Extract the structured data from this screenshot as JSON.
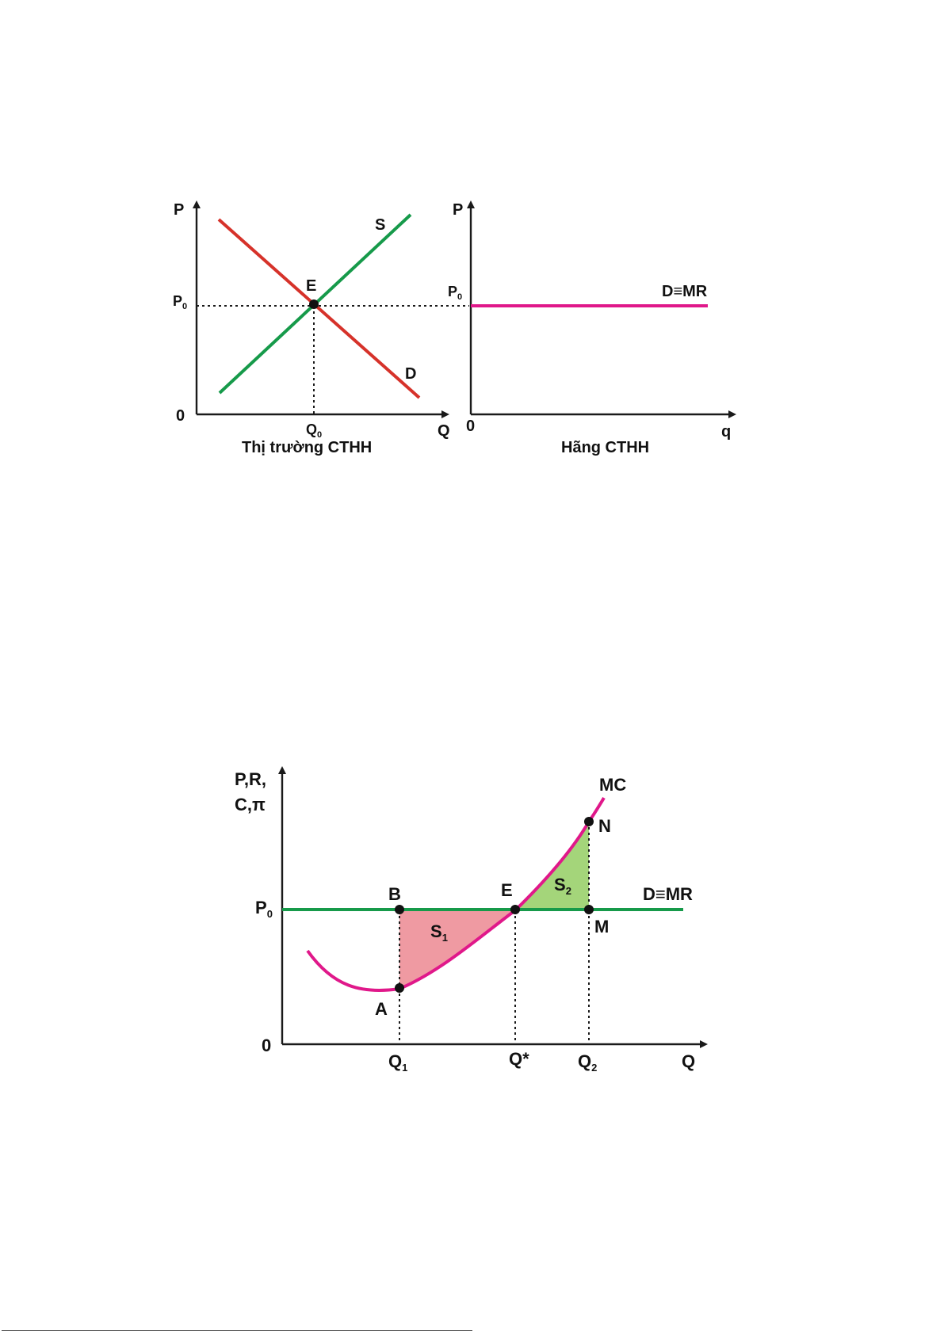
{
  "colors": {
    "demand": "#d6322a",
    "supply": "#169a4a",
    "firm_demand": "#e0188a",
    "mc_curve": "#e0188a",
    "mr_line": "#169a4a",
    "area_s1": "#ef9aa2",
    "area_s2": "#a4d57a",
    "axis": "#1a1a1a"
  },
  "market_panel": {
    "axis_p": "P",
    "axis_q": "Q",
    "origin": "0",
    "price": {
      "main": "P",
      "sub": "0"
    },
    "quantity": {
      "main": "Q",
      "sub": "0"
    },
    "supply_label": "S",
    "demand_label": "D",
    "equilibrium_label": "E",
    "caption": "Thị trường CTHH"
  },
  "firm_panel": {
    "axis_p": "P",
    "axis_q": "q",
    "origin": "0",
    "price": {
      "main": "P",
      "sub": "0"
    },
    "demand_label": "D≡MR",
    "caption": "Hãng CTHH"
  },
  "profit_diagram": {
    "axis_y_line1": "P,R,",
    "axis_y_line2": "C,π",
    "axis_x": "Q",
    "origin": "0",
    "price": {
      "main": "P",
      "sub": "0"
    },
    "mc_label": "MC",
    "mr_label": "D≡MR",
    "points": {
      "a": "A",
      "b": "B",
      "e": "E",
      "n": "N",
      "m": "M"
    },
    "q1": {
      "main": "Q",
      "sub": "1"
    },
    "q_star": "Q*",
    "q2": {
      "main": "Q",
      "sub": "2"
    },
    "area1": {
      "main": "S",
      "sub": "1"
    },
    "area2": {
      "main": "S",
      "sub": "2"
    }
  }
}
